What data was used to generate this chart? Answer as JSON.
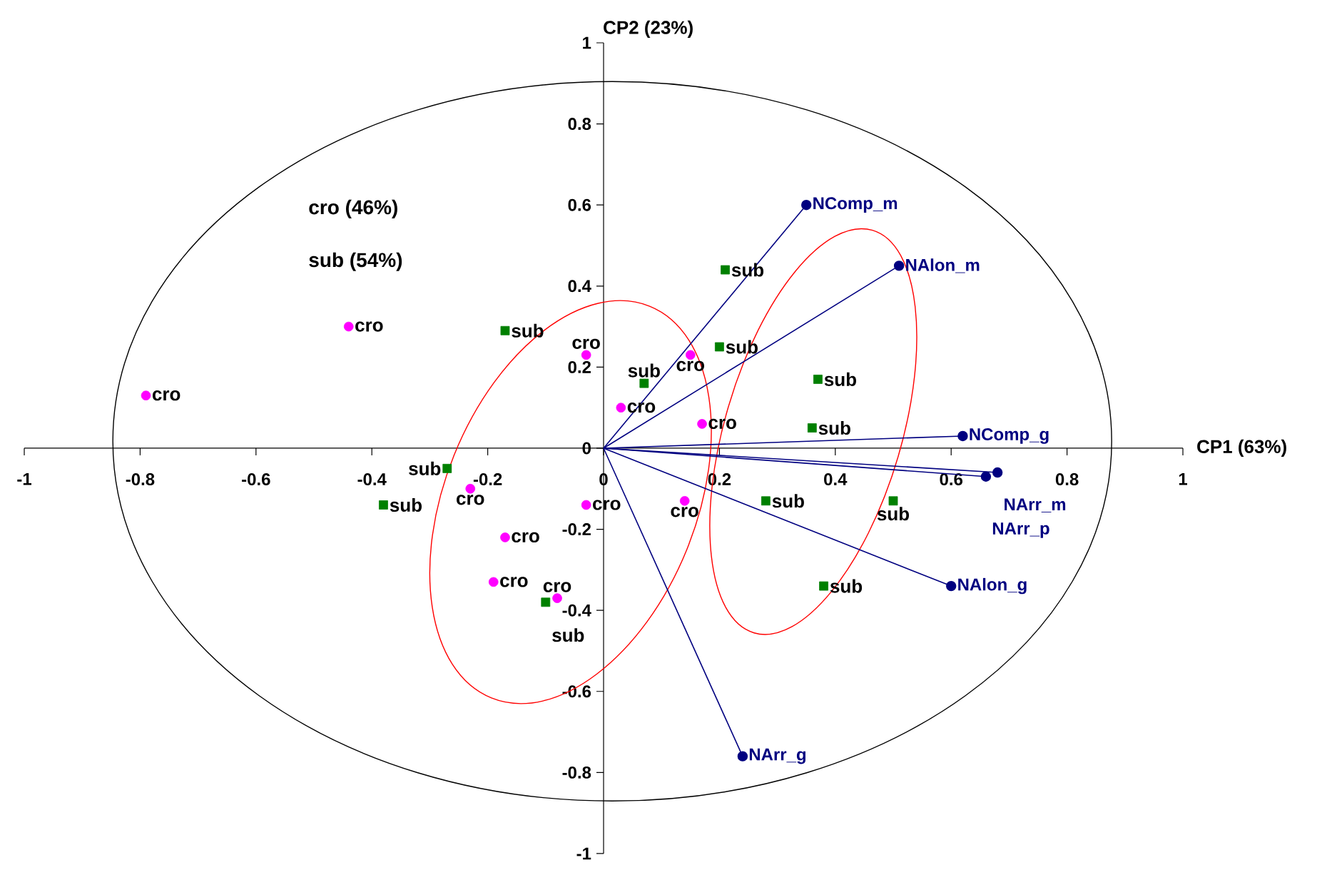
{
  "chart_data": {
    "type": "scatter",
    "xlabel": "CP1 (63%)",
    "ylabel": "CP2 (23%)",
    "xlim": [
      -1,
      1
    ],
    "ylim": [
      -1,
      1
    ],
    "xticks": [
      -1,
      -0.8,
      -0.6,
      -0.4,
      -0.2,
      0,
      0.2,
      0.4,
      0.6,
      0.8,
      1
    ],
    "yticks": [
      -1,
      -0.8,
      -0.6,
      -0.4,
      -0.2,
      0,
      0.2,
      0.4,
      0.6,
      0.8,
      1
    ],
    "annotations": [
      "cro (46%)",
      "sub (54%)"
    ],
    "series": [
      {
        "type": "line",
        "name": "NComp_m",
        "color": "#000080",
        "marker": "circle",
        "x": [
          0,
          0.35
        ],
        "values": [
          0,
          0.6
        ]
      },
      {
        "type": "line",
        "name": "NAlon_m",
        "color": "#000080",
        "marker": "circle",
        "x": [
          0,
          0.51
        ],
        "values": [
          0,
          0.45
        ]
      },
      {
        "type": "line",
        "name": "NComp_g",
        "color": "#000080",
        "marker": "circle",
        "x": [
          0,
          0.62
        ],
        "values": [
          0,
          0.03
        ]
      },
      {
        "type": "line",
        "name": "NArr_m",
        "color": "#000080",
        "marker": "circle",
        "x": [
          0,
          0.68
        ],
        "values": [
          0,
          -0.06
        ]
      },
      {
        "type": "line",
        "name": "NArr_p",
        "color": "#000080",
        "marker": "circle",
        "x": [
          0,
          0.66
        ],
        "values": [
          0,
          -0.07
        ]
      },
      {
        "type": "line",
        "name": "NAlon_g",
        "color": "#000080",
        "marker": "circle",
        "x": [
          0,
          0.6
        ],
        "values": [
          0,
          -0.34
        ]
      },
      {
        "type": "line",
        "name": "NArr_g",
        "color": "#000080",
        "marker": "circle",
        "x": [
          0,
          0.24
        ],
        "values": [
          0,
          -0.76
        ]
      },
      {
        "type": "scatter",
        "color": "#ff00ff",
        "marker": "circle",
        "x": [
          -0.79,
          -0.44,
          -0.03,
          0.15,
          0.03,
          0.17,
          0.14,
          -0.03,
          -0.23,
          -0.17,
          -0.19,
          -0.08
        ],
        "values": [
          0.13,
          0.3,
          0.23,
          0.23,
          0.1,
          0.06,
          -0.13,
          -0.14,
          -0.1,
          -0.22,
          -0.33,
          -0.37
        ],
        "value_labels": [
          "cro",
          "cro",
          "cro",
          "cro",
          "cro",
          "cro",
          "cro",
          "cro",
          "cro",
          "cro",
          "cro",
          "cro"
        ]
      },
      {
        "type": "scatter",
        "color": "#008000",
        "marker": "square",
        "x": [
          -0.17,
          -0.27,
          -0.38,
          -0.1,
          0.07,
          0.21,
          0.2,
          0.37,
          0.36,
          0.28,
          0.5,
          0.38
        ],
        "values": [
          0.29,
          -0.05,
          -0.14,
          -0.38,
          0.16,
          0.44,
          0.25,
          0.17,
          0.05,
          -0.13,
          -0.13,
          -0.34
        ],
        "value_labels": [
          "sub",
          "sub",
          "sub",
          "sub",
          "sub",
          "sub",
          "sub",
          "sub",
          "sub",
          "sub",
          "sub",
          "sub"
        ]
      }
    ]
  }
}
